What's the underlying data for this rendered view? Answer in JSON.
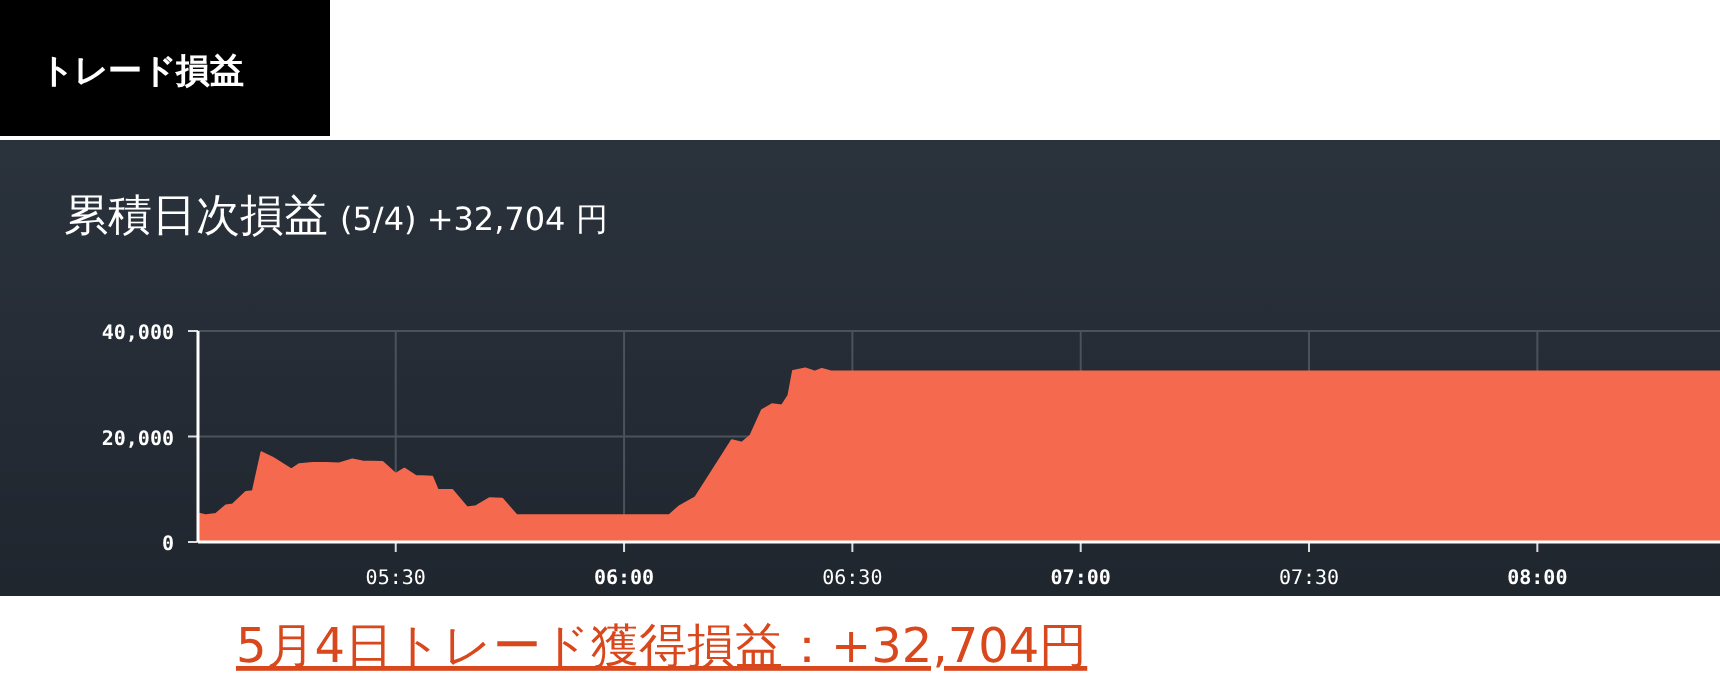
{
  "chart_data": {
    "type": "area",
    "title": "累積日次損益",
    "subtitle": "(5/4) +32,704 円",
    "annotations": [
      "トレード損益",
      "5月4日トレード獲得損益：+32,704円"
    ],
    "xlim": [
      5.067,
      8.4
    ],
    "xticks": [
      {
        "value": 5.5,
        "label": "05:30"
      },
      {
        "value": 6,
        "label": "06:00"
      },
      {
        "value": 6.5,
        "label": "06:30"
      },
      {
        "value": 7,
        "label": "07:00"
      },
      {
        "value": 7.5,
        "label": "07:30"
      },
      {
        "value": 8,
        "label": "08:00"
      }
    ],
    "ylim": [
      0,
      40000
    ],
    "yticks": [
      {
        "value": 0,
        "label": "0"
      },
      {
        "value": 20000,
        "label": "20,000"
      },
      {
        "value": 40000,
        "label": "40,000"
      }
    ],
    "grid": true,
    "series": [
      {
        "color": "#f56a4f",
        "x": [
          5.067,
          5.085,
          5.106,
          5.128,
          5.143,
          5.172,
          5.187,
          5.206,
          5.23,
          5.271,
          5.289,
          5.318,
          5.347,
          5.376,
          5.405,
          5.427,
          5.471,
          5.5,
          5.519,
          5.544,
          5.58,
          5.592,
          5.624,
          5.656,
          5.676,
          5.706,
          5.733,
          5.765,
          5.843,
          6.099,
          6.12,
          6.156,
          6.236,
          6.258,
          6.277,
          6.302,
          6.324,
          6.346,
          6.36,
          6.37,
          6.397,
          6.418,
          6.433,
          6.455,
          8.4
        ],
        "values": [
          5400,
          5050,
          5300,
          6900,
          7100,
          9500,
          9600,
          17000,
          16000,
          13750,
          14750,
          15000,
          15000,
          14900,
          15650,
          15250,
          15150,
          12900,
          13900,
          12500,
          12350,
          9850,
          9850,
          6550,
          6800,
          8300,
          8200,
          5050,
          5050,
          5050,
          6700,
          8450,
          19300,
          18800,
          20200,
          25000,
          26100,
          25900,
          27750,
          32400,
          32900,
          32300,
          32800,
          32300,
          32300
        ]
      }
    ]
  }
}
